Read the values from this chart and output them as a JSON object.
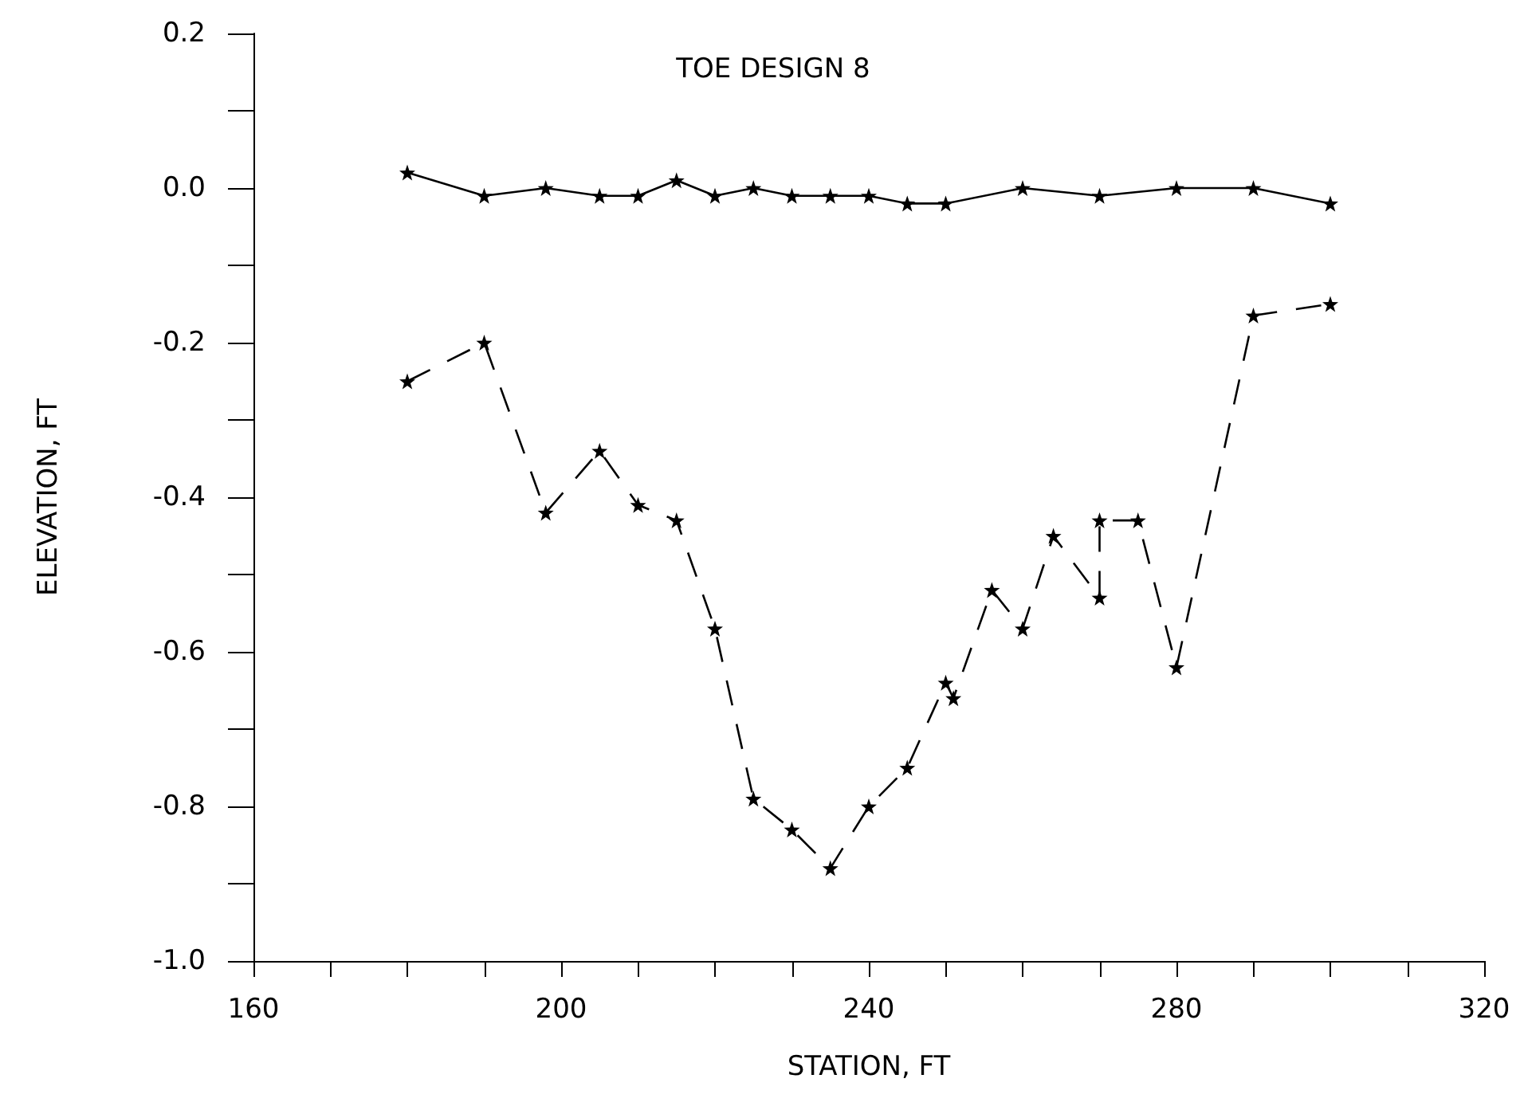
{
  "chart_data": {
    "type": "line",
    "title": "TOE DESIGN 8",
    "xlabel": "STATION, FT",
    "ylabel": "ELEVATION, FT",
    "xlim": [
      160,
      320
    ],
    "xticks": [
      160,
      {
        "value": 170,
        "label": null
      },
      {
        "value": 180,
        "label": null
      },
      {
        "value": 190,
        "label": null
      },
      200,
      {
        "value": 210,
        "label": null
      },
      {
        "value": 220,
        "label": null
      },
      {
        "value": 230,
        "label": null
      },
      240,
      {
        "value": 250,
        "label": null
      },
      {
        "value": 260,
        "label": null
      },
      {
        "value": 270,
        "label": null
      },
      280,
      {
        "value": 290,
        "label": null
      },
      {
        "value": 300,
        "label": null
      },
      {
        "value": 310,
        "label": null
      },
      320
    ],
    "ylim": [
      -1.0,
      0.2
    ],
    "yticks": [
      {
        "value": -1.0,
        "label": "-1.0"
      },
      {
        "value": -0.9,
        "label": null
      },
      -0.8,
      {
        "value": -0.7,
        "label": null
      },
      -0.6,
      {
        "value": -0.5,
        "label": null
      },
      -0.4,
      {
        "value": -0.3,
        "label": null
      },
      -0.2,
      {
        "value": -0.1,
        "label": null
      },
      {
        "value": 0,
        "label": "0.0"
      },
      {
        "value": 0.1,
        "label": null
      },
      0.2
    ],
    "grid": false,
    "marker": "star",
    "series": [
      {
        "color": "#000000",
        "line_style": "solid",
        "x": [
          180,
          190,
          198,
          205,
          210,
          215,
          220,
          225,
          230,
          235,
          240,
          245,
          250,
          260,
          270,
          280,
          290,
          300
        ],
        "values": [
          0.02,
          -0.01,
          0,
          -0.01,
          -0.01,
          0.01,
          -0.01,
          0,
          -0.01,
          -0.01,
          -0.01,
          -0.02,
          -0.02,
          0,
          -0.01,
          0,
          0,
          -0.02
        ]
      },
      {
        "color": "#000000",
        "line_style": "dashed",
        "x": [
          180,
          190,
          198,
          205,
          210,
          215,
          220,
          225,
          230,
          235,
          240,
          245,
          250,
          251,
          256,
          260,
          264,
          270,
          270,
          275,
          280,
          290,
          300
        ],
        "values": [
          -0.25,
          -0.2,
          -0.42,
          -0.34,
          -0.41,
          -0.43,
          -0.57,
          -0.79,
          -0.83,
          -0.88,
          -0.8,
          -0.75,
          -0.64,
          -0.66,
          -0.52,
          -0.57,
          -0.45,
          -0.53,
          -0.43,
          -0.43,
          -0.62,
          -0.165,
          -0.15
        ]
      }
    ]
  }
}
